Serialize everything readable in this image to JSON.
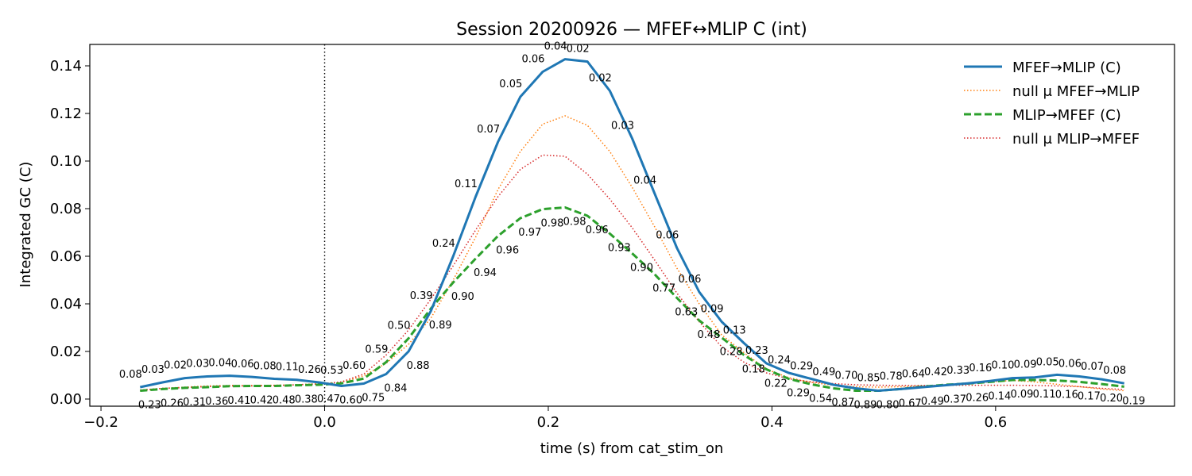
{
  "chart_data": {
    "type": "line",
    "title": "Session 20200926 — MFEF↔MLIP C (int)",
    "xlabel": "time (s) from cat_stim_on",
    "ylabel": "Integrated GC (C)",
    "xlim": [
      -0.21,
      0.76
    ],
    "ylim": [
      -0.003,
      0.149
    ],
    "xticks": [
      -0.2,
      0.0,
      0.2,
      0.4,
      0.6
    ],
    "xtick_labels": [
      "−0.2",
      "0.0",
      "0.2",
      "0.4",
      "0.6"
    ],
    "yticks": [
      0.0,
      0.02,
      0.04,
      0.06,
      0.08,
      0.1,
      0.12,
      0.14
    ],
    "ytick_labels": [
      "0.00",
      "0.02",
      "0.04",
      "0.06",
      "0.08",
      "0.10",
      "0.12",
      "0.14"
    ],
    "vline_x": 0.0,
    "grid": false,
    "legend_position": "top-right",
    "x": [
      -0.165,
      -0.145,
      -0.125,
      -0.105,
      -0.085,
      -0.065,
      -0.045,
      -0.025,
      -0.005,
      0.015,
      0.035,
      0.055,
      0.075,
      0.095,
      0.115,
      0.135,
      0.155,
      0.175,
      0.195,
      0.215,
      0.235,
      0.255,
      0.275,
      0.295,
      0.315,
      0.335,
      0.355,
      0.375,
      0.395,
      0.415,
      0.435,
      0.455,
      0.475,
      0.495,
      0.515,
      0.535,
      0.555,
      0.575,
      0.595,
      0.615,
      0.635,
      0.655,
      0.675,
      0.695,
      0.715
    ],
    "series": [
      {
        "name": "MFEF→MLIP (C)",
        "color": "#1f77b4",
        "style": "solid",
        "values": [
          0.005,
          0.007,
          0.0088,
          0.0095,
          0.0098,
          0.0093,
          0.0085,
          0.0081,
          0.007,
          0.0055,
          0.0065,
          0.0105,
          0.02,
          0.037,
          0.06,
          0.085,
          0.108,
          0.127,
          0.1375,
          0.1428,
          0.1418,
          0.1295,
          0.1095,
          0.0865,
          0.0635,
          0.045,
          0.0325,
          0.0235,
          0.015,
          0.011,
          0.0085,
          0.006,
          0.0045,
          0.0035,
          0.0042,
          0.005,
          0.0058,
          0.0066,
          0.0076,
          0.0088,
          0.0091,
          0.0102,
          0.0095,
          0.0083,
          0.0066
        ],
        "p_labels": [
          "0.08",
          "0.03",
          "0.02",
          "0.03",
          "0.04",
          "0.06",
          "0.08",
          "0.11",
          "0.26",
          "0.53",
          "0.60",
          "0.59",
          "0.50",
          "0.39",
          "0.24",
          "0.11",
          "0.07",
          "0.05",
          "0.06",
          "0.04",
          "0.02",
          "0.02",
          "0.03",
          "0.04",
          "0.06",
          "0.06",
          "0.09",
          "0.13",
          "0.23",
          "0.24",
          "0.29",
          "0.49",
          "0.70",
          "0.85",
          "0.78",
          "0.64",
          "0.42",
          "0.33",
          "0.16",
          "0.10",
          "0.09",
          "0.05",
          "0.06",
          "0.07",
          "0.08"
        ]
      },
      {
        "name": "null μ MFEF→MLIP",
        "color": "#ff7f0e",
        "style": "dotted",
        "values": [
          0.0035,
          0.0045,
          0.005,
          0.0055,
          0.0057,
          0.0057,
          0.0058,
          0.006,
          0.0065,
          0.007,
          0.0098,
          0.015,
          0.023,
          0.034,
          0.05,
          0.068,
          0.088,
          0.104,
          0.1155,
          0.119,
          0.115,
          0.104,
          0.089,
          0.0725,
          0.055,
          0.04,
          0.027,
          0.0195,
          0.0125,
          0.009,
          0.007,
          0.0058,
          0.0052,
          0.005,
          0.0052,
          0.0055,
          0.0058,
          0.0065,
          0.0072,
          0.0078,
          0.0072,
          0.0062,
          0.0052,
          0.0042,
          0.0035
        ]
      },
      {
        "name": "MLIP→MFEF (C)",
        "color": "#2ca02c",
        "style": "dashed",
        "values": [
          0.0035,
          0.0042,
          0.0047,
          0.005,
          0.0054,
          0.0055,
          0.0055,
          0.0058,
          0.006,
          0.0066,
          0.0086,
          0.0155,
          0.0255,
          0.038,
          0.049,
          0.059,
          0.0685,
          0.076,
          0.0798,
          0.0805,
          0.077,
          0.0695,
          0.0612,
          0.0525,
          0.0425,
          0.033,
          0.0258,
          0.0185,
          0.0125,
          0.0085,
          0.0062,
          0.0045,
          0.0035,
          0.0035,
          0.0042,
          0.0052,
          0.006,
          0.0065,
          0.0072,
          0.008,
          0.008,
          0.0078,
          0.0072,
          0.0063,
          0.0052
        ],
        "p_labels": [
          "0.23",
          "0.26",
          "0.31",
          "0.36",
          "0.41",
          "0.42",
          "0.48",
          "0.38",
          "0.47",
          "0.60",
          "0.75",
          "0.84",
          "0.88",
          "0.89",
          "0.90",
          "0.94",
          "0.96",
          "0.97",
          "0.98",
          "0.98",
          "0.96",
          "0.93",
          "0.90",
          "0.77",
          "0.63",
          "0.48",
          "0.28",
          "0.18",
          "0.22",
          "0.29",
          "0.54",
          "0.87",
          "0.89",
          "0.80",
          "0.67",
          "0.49",
          "0.37",
          "0.26",
          "0.14",
          "0.09",
          "0.11",
          "0.16",
          "0.17",
          "0.20",
          "0.19"
        ]
      },
      {
        "name": "null μ MLIP→MFEF",
        "color": "#d62728",
        "style": "dotted",
        "values": [
          0.0038,
          0.0045,
          0.0048,
          0.0052,
          0.0055,
          0.0055,
          0.0056,
          0.006,
          0.0063,
          0.0072,
          0.0105,
          0.0185,
          0.029,
          0.042,
          0.056,
          0.071,
          0.085,
          0.0965,
          0.1025,
          0.102,
          0.0945,
          0.084,
          0.072,
          0.0585,
          0.0445,
          0.0325,
          0.022,
          0.0155,
          0.011,
          0.0085,
          0.0072,
          0.0065,
          0.006,
          0.0058,
          0.0057,
          0.0057,
          0.0058,
          0.0058,
          0.0058,
          0.0058,
          0.0057,
          0.0055,
          0.0052,
          0.0045,
          0.004
        ]
      }
    ]
  }
}
